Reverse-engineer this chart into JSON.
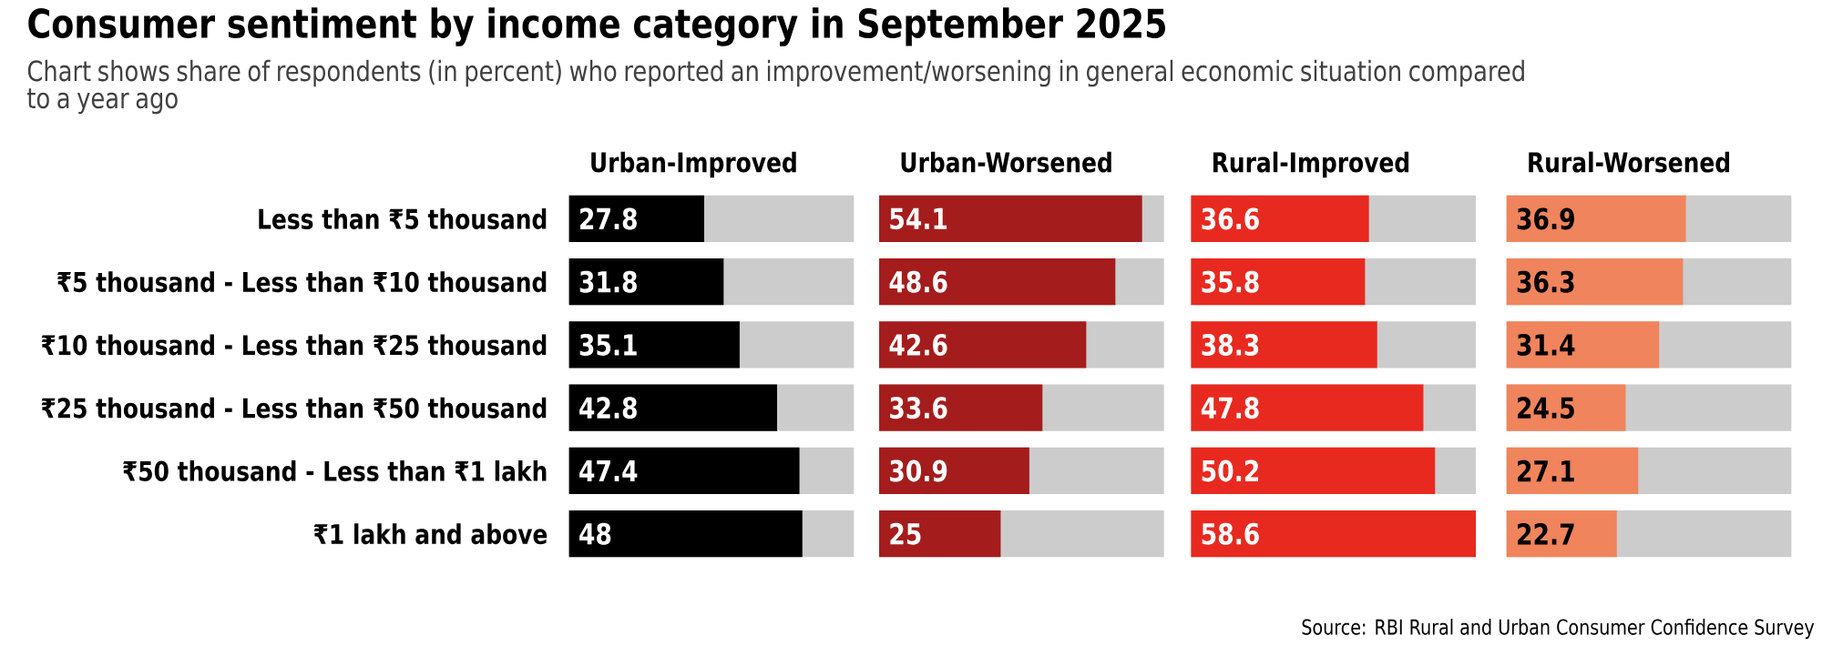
{
  "chart_data": [
    {
      "type": "bar",
      "orientation": "horizontal",
      "title": "Consumer sentiment by income category in September 2025",
      "subtitle": "Chart shows share of respondents (in percent) who reported an improvement/worsening in general economic situation compared to a year ago",
      "categories": [
        "Less than ₹5 thousand",
        "₹5 thousand - Less than ₹10 thousand",
        "₹10 thousand - Less than ₹25 thousand",
        "₹25 thousand - Less than ₹50 thousand",
        "₹50 thousand - Less than ₹1 lakh",
        "₹1 lakh and above"
      ],
      "xlim": [
        0,
        58.6
      ],
      "data_labels": true,
      "tick_labels": "y",
      "series": [
        {
          "name": "Urban-Improved",
          "color": "#000000",
          "values": [
            27.8,
            31.8,
            35.1,
            42.8,
            47.4,
            48
          ]
        }
      ]
    },
    {
      "type": "bar",
      "orientation": "horizontal",
      "categories": [
        null,
        null,
        null,
        null,
        null,
        null
      ],
      "xlim": [
        0,
        58.6
      ],
      "data_labels": true,
      "tick_labels": false,
      "series": [
        {
          "name": "Urban-Worsened",
          "color": "#a51c1c",
          "values": [
            54.1,
            48.6,
            42.6,
            33.6,
            30.9,
            25
          ]
        }
      ]
    },
    {
      "type": "bar",
      "orientation": "horizontal",
      "categories": [
        null,
        null,
        null,
        null,
        null,
        null
      ],
      "xlim": [
        0,
        58.6
      ],
      "data_labels": true,
      "tick_labels": false,
      "series": [
        {
          "name": "Rural-Improved",
          "color": "#e8291f",
          "values": [
            36.6,
            35.8,
            38.3,
            47.8,
            50.2,
            58.6
          ]
        }
      ]
    },
    {
      "type": "bar",
      "orientation": "horizontal",
      "categories": [
        null,
        null,
        null,
        null,
        null,
        null
      ],
      "xlim": [
        0,
        58.6
      ],
      "data_labels": true,
      "tick_labels": false,
      "annotations": [
        "Source: RBI Rural and Urban Consumer Confidence Survey"
      ],
      "series": [
        {
          "name": "Rural-Worsened",
          "color": "#f0845c",
          "values": [
            36.9,
            36.3,
            31.4,
            24.5,
            27.1,
            22.7
          ]
        }
      ]
    }
  ]
}
